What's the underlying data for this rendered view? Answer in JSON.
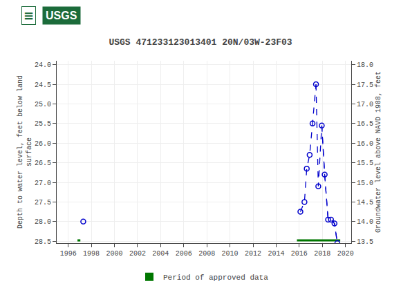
{
  "chart_data": {
    "type": "line",
    "title": "USGS 471233123013401 20N/03W-23F03",
    "ylabel": "Depth to water level, feet below land\nsurface",
    "y2label": "Groundwater level above NAVD 1988, feet",
    "xlim": [
      1995.0,
      2020.5
    ],
    "xticks": [
      1996,
      1998,
      2000,
      2002,
      2004,
      2006,
      2008,
      2010,
      2012,
      2014,
      2016,
      2018,
      2020
    ],
    "ylim": [
      28.55,
      23.9
    ],
    "yticks": [
      {
        "value": 24.0,
        "label": "24.0"
      },
      24.5,
      {
        "value": 25.0,
        "label": "25.0"
      },
      25.5,
      {
        "value": 26.0,
        "label": "26.0"
      },
      26.5,
      {
        "value": 27.0,
        "label": "27.0"
      },
      27.5,
      {
        "value": 28.0,
        "label": "28.0"
      },
      28.5
    ],
    "y2lim": [
      13.45,
      18.1
    ],
    "y2ticks": [
      {
        "value": 18.0,
        "label": "18.0"
      },
      17.5,
      {
        "value": 17.0,
        "label": "17.0"
      },
      16.5,
      {
        "value": 16.0,
        "label": "16.0"
      },
      15.5,
      {
        "value": 15.0,
        "label": "15.0"
      },
      14.5,
      {
        "value": 14.0,
        "label": "14.0"
      },
      13.5
    ],
    "grid": true,
    "legend": "bottom",
    "annotations": [
      {
        "text": "≡",
        "color": "#1b6b3a"
      },
      {
        "text": "USGS",
        "color": "#1b6b3a"
      }
    ],
    "series": [
      {
        "type": "line",
        "line_style": "dashed",
        "color": "#0000cc",
        "x": [
          2016.1,
          2016.45,
          2016.65,
          2016.9,
          2017.15,
          2017.45
        ],
        "values": [
          27.75,
          27.5,
          26.65,
          26.3,
          25.5,
          24.5
        ]
      },
      {
        "type": "line",
        "line_style": "dashed",
        "color": "#0000cc",
        "x": [
          2017.45,
          2017.65,
          2017.95,
          2018.2,
          2018.5,
          2018.75,
          2019.05,
          2019.3
        ],
        "values": [
          24.5,
          27.1,
          25.55,
          26.8,
          27.95,
          27.95,
          28.05,
          28.55
        ]
      },
      {
        "type": "line",
        "line_style": "dashed",
        "color": "#0000cc",
        "x": [
          2017.95,
          2018.2,
          2018.5,
          2018.75,
          2019.05,
          2019.3
        ],
        "values": [
          25.55,
          26.8,
          27.95,
          27.95,
          28.05,
          28.55
        ]
      },
      {
        "type": "scatter",
        "marker": "open_circle",
        "color": "#0000cc",
        "x": [
          1997.3,
          2016.1,
          2016.45,
          2016.65,
          2016.9,
          2017.15,
          2017.45,
          2017.65,
          2017.95,
          2018.2,
          2018.5,
          2018.75,
          2019.05,
          2019.3
        ],
        "values": [
          28.0,
          27.75,
          27.5,
          26.65,
          26.3,
          25.5,
          24.5,
          27.1,
          25.55,
          26.8,
          27.95,
          27.95,
          28.05,
          28.55
        ]
      },
      {
        "type": "bar",
        "orientation": "horizontal",
        "name": "Period of approved data",
        "color": "#007700",
        "x_start": [
          1996.8,
          2015.8
        ],
        "x_end": [
          1997.05,
          2019.55
        ],
        "values": [
          28.48,
          28.48
        ]
      }
    ]
  }
}
